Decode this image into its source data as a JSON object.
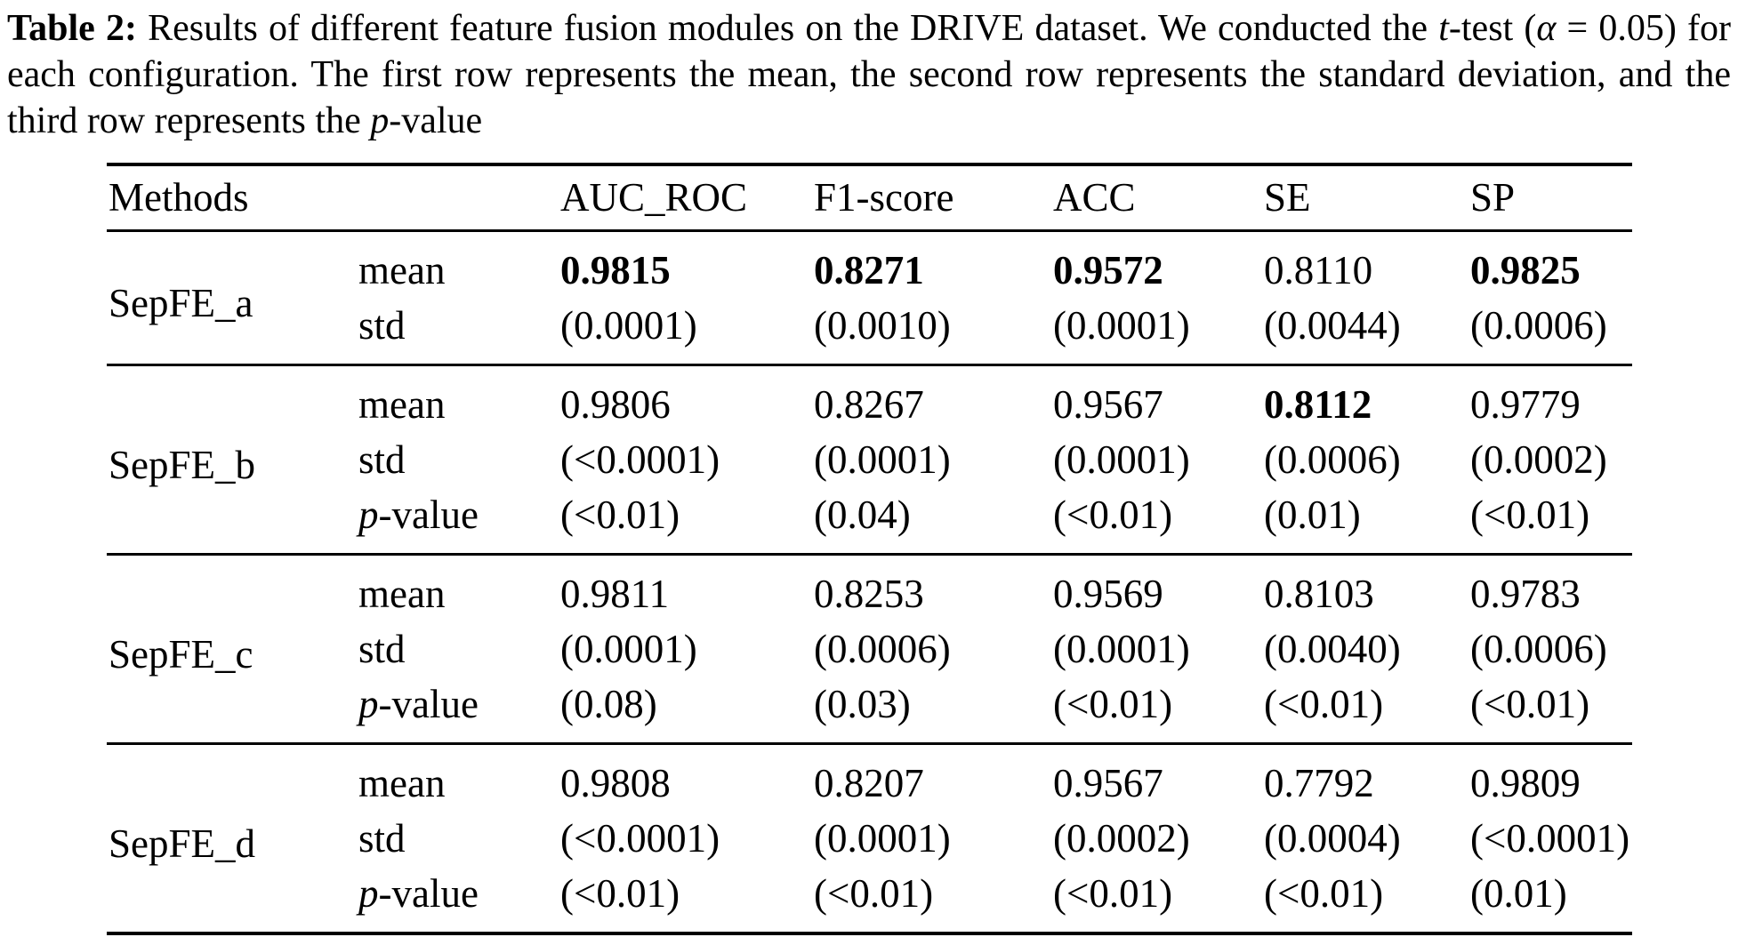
{
  "caption": {
    "label": "Table 2:",
    "segments": [
      {
        "text": " Results of different feature fusion modules on the DRIVE dataset. We conducted the ",
        "style": "normal"
      },
      {
        "text": "t",
        "style": "italic"
      },
      {
        "text": "-test (",
        "style": "normal"
      },
      {
        "text": "α",
        "style": "italic"
      },
      {
        "text": " = 0.05) for each configuration. The first row represents the mean, the second row represents the standard deviation, and the third row represents the ",
        "style": "normal"
      },
      {
        "text": "p",
        "style": "italic"
      },
      {
        "text": "-value",
        "style": "normal"
      }
    ]
  },
  "table": {
    "columns": {
      "method": "Methods",
      "metrics": [
        "AUC_ROC",
        "F1-score",
        "ACC",
        "SE",
        "SP"
      ]
    },
    "groups": [
      {
        "method": "SepFE_a",
        "rows": [
          {
            "label": "mean",
            "cells": [
              {
                "v": "0.9815",
                "b": true
              },
              {
                "v": "0.8271",
                "b": true
              },
              {
                "v": "0.9572",
                "b": true
              },
              {
                "v": "0.8110",
                "b": false
              },
              {
                "v": "0.9825",
                "b": true
              }
            ]
          },
          {
            "label": "std",
            "cells": [
              {
                "v": "(0.0001)"
              },
              {
                "v": "(0.0010)"
              },
              {
                "v": "(0.0001)"
              },
              {
                "v": "(0.0044)"
              },
              {
                "v": "(0.0006)"
              }
            ]
          }
        ]
      },
      {
        "method": "SepFE_b",
        "rows": [
          {
            "label": "mean",
            "cells": [
              {
                "v": "0.9806",
                "b": false
              },
              {
                "v": "0.8267",
                "b": false
              },
              {
                "v": "0.9567",
                "b": false
              },
              {
                "v": "0.8112",
                "b": true
              },
              {
                "v": "0.9779",
                "b": false
              }
            ]
          },
          {
            "label": "std",
            "cells": [
              {
                "v": "(<0.0001)"
              },
              {
                "v": "(0.0001)"
              },
              {
                "v": "(0.0001)"
              },
              {
                "v": "(0.0006)"
              },
              {
                "v": "(0.0002)"
              }
            ]
          },
          {
            "label": "p-value",
            "label_italic": "p",
            "label_rest": "-value",
            "cells": [
              {
                "v": "(<0.01)"
              },
              {
                "v": "(0.04)"
              },
              {
                "v": "(<0.01)"
              },
              {
                "v": "(0.01)"
              },
              {
                "v": "(<0.01)"
              }
            ]
          }
        ]
      },
      {
        "method": "SepFE_c",
        "rows": [
          {
            "label": "mean",
            "cells": [
              {
                "v": "0.9811",
                "b": false
              },
              {
                "v": "0.8253",
                "b": false
              },
              {
                "v": "0.9569",
                "b": false
              },
              {
                "v": "0.8103",
                "b": false
              },
              {
                "v": "0.9783",
                "b": false
              }
            ]
          },
          {
            "label": "std",
            "cells": [
              {
                "v": "(0.0001)"
              },
              {
                "v": "(0.0006)"
              },
              {
                "v": "(0.0001)"
              },
              {
                "v": "(0.0040)"
              },
              {
                "v": "(0.0006)"
              }
            ]
          },
          {
            "label": "p-value",
            "label_italic": "p",
            "label_rest": "-value",
            "cells": [
              {
                "v": "(0.08)"
              },
              {
                "v": "(0.03)"
              },
              {
                "v": "(<0.01)"
              },
              {
                "v": "(<0.01)"
              },
              {
                "v": "(<0.01)"
              }
            ]
          }
        ]
      },
      {
        "method": "SepFE_d",
        "rows": [
          {
            "label": "mean",
            "cells": [
              {
                "v": "0.9808",
                "b": false
              },
              {
                "v": "0.8207",
                "b": false
              },
              {
                "v": "0.9567",
                "b": false
              },
              {
                "v": "0.7792",
                "b": false
              },
              {
                "v": "0.9809",
                "b": false
              }
            ]
          },
          {
            "label": "std",
            "cells": [
              {
                "v": "(<0.0001)"
              },
              {
                "v": "(0.0001)"
              },
              {
                "v": "(0.0002)"
              },
              {
                "v": "(0.0004)"
              },
              {
                "v": "(<0.0001)"
              }
            ]
          },
          {
            "label": "p-value",
            "label_italic": "p",
            "label_rest": "-value",
            "cells": [
              {
                "v": "(<0.01)"
              },
              {
                "v": "(<0.01)"
              },
              {
                "v": "(<0.01)"
              },
              {
                "v": "(<0.01)"
              },
              {
                "v": "(0.01)"
              }
            ]
          }
        ]
      }
    ]
  }
}
